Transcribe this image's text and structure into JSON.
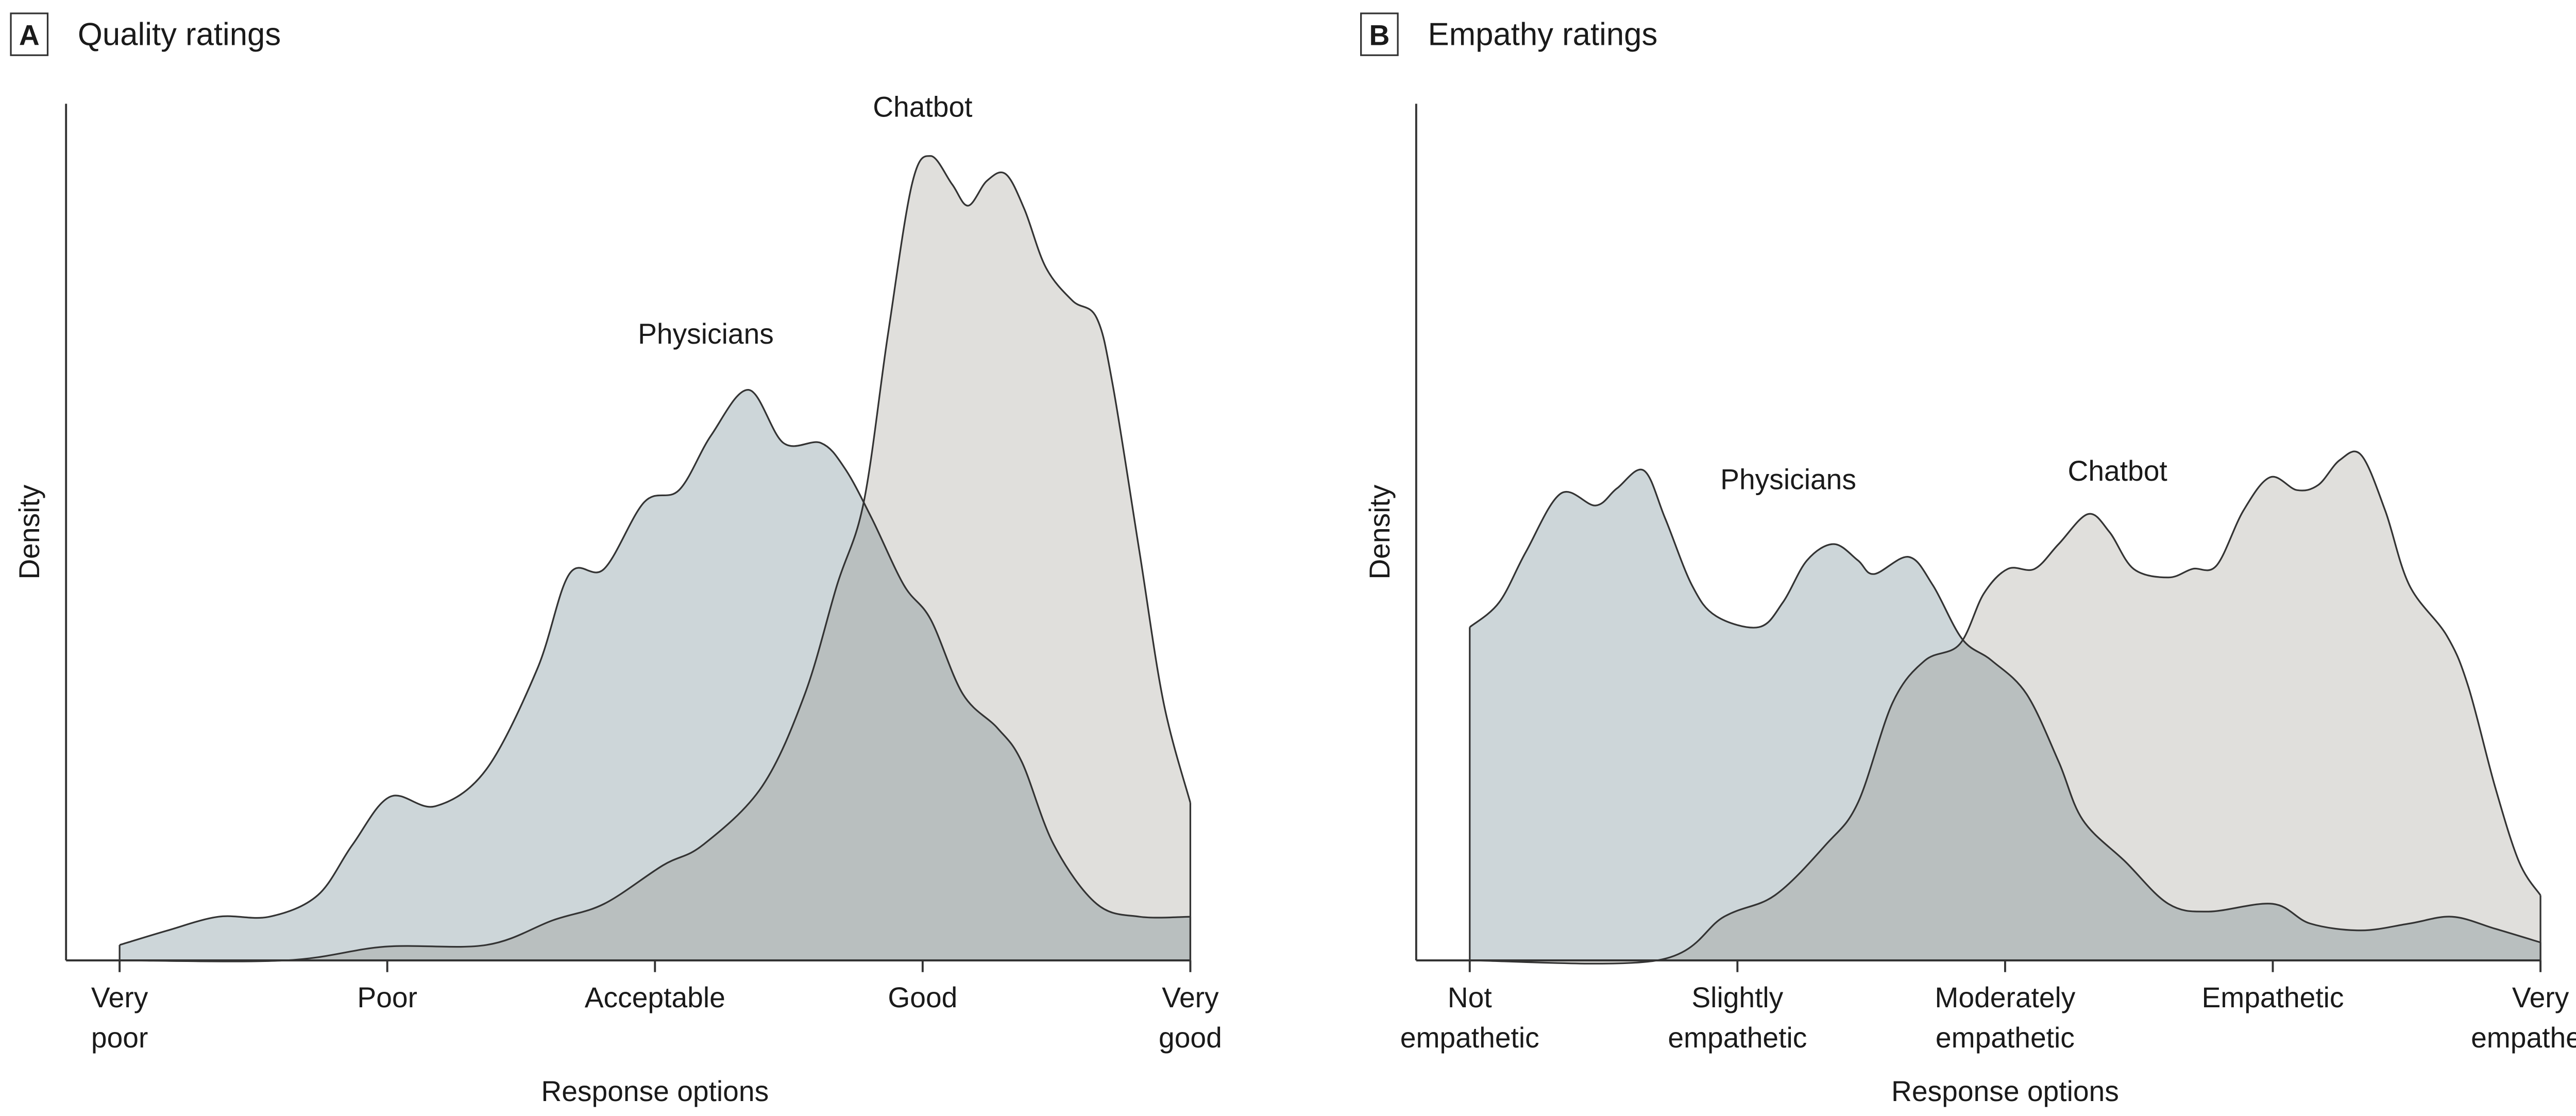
{
  "colors": {
    "physicians": "#cdd6d9",
    "chatbot": "#e0dfdc",
    "overlap": "#b9bfbf",
    "line": "#333333"
  },
  "chart_data": [
    {
      "type": "area",
      "panel": "A",
      "title": "Quality ratings",
      "xlabel": "Response options",
      "ylabel": "Density",
      "xlim": [
        1,
        5
      ],
      "ylim": [
        0,
        1
      ],
      "grid": false,
      "x_ticks": [
        {
          "value": 1,
          "lines": [
            "Very",
            "poor"
          ]
        },
        {
          "value": 2,
          "lines": [
            "Poor"
          ]
        },
        {
          "value": 3,
          "lines": [
            "Acceptable"
          ]
        },
        {
          "value": 4,
          "lines": [
            "Good"
          ]
        },
        {
          "value": 5,
          "lines": [
            "Very",
            "good"
          ]
        }
      ],
      "series": [
        {
          "name": "Physicians",
          "label_at": [
            3.19,
            0.72
          ],
          "points": [
            [
              1.0,
              0.018
            ],
            [
              1.18,
              0.035
            ],
            [
              1.37,
              0.051
            ],
            [
              1.56,
              0.051
            ],
            [
              1.74,
              0.076
            ],
            [
              1.87,
              0.135
            ],
            [
              2.01,
              0.191
            ],
            [
              2.18,
              0.18
            ],
            [
              2.37,
              0.223
            ],
            [
              2.56,
              0.34
            ],
            [
              2.68,
              0.451
            ],
            [
              2.81,
              0.457
            ],
            [
              2.96,
              0.535
            ],
            [
              3.09,
              0.549
            ],
            [
              3.21,
              0.613
            ],
            [
              3.35,
              0.666
            ],
            [
              3.48,
              0.604
            ],
            [
              3.62,
              0.604
            ],
            [
              3.71,
              0.574
            ],
            [
              3.81,
              0.516
            ],
            [
              3.93,
              0.438
            ],
            [
              4.03,
              0.398
            ],
            [
              4.15,
              0.311
            ],
            [
              4.28,
              0.271
            ],
            [
              4.37,
              0.232
            ],
            [
              4.49,
              0.135
            ],
            [
              4.65,
              0.066
            ],
            [
              4.81,
              0.051
            ],
            [
              5.0,
              0.051
            ]
          ]
        },
        {
          "name": "Chatbot",
          "label_at": [
            4.0,
            0.985
          ],
          "points": [
            [
              1.0,
              0.0
            ],
            [
              1.62,
              0.0
            ],
            [
              1.99,
              0.016
            ],
            [
              2.37,
              0.018
            ],
            [
              2.62,
              0.047
            ],
            [
              2.81,
              0.066
            ],
            [
              3.03,
              0.111
            ],
            [
              3.18,
              0.135
            ],
            [
              3.4,
              0.203
            ],
            [
              3.56,
              0.311
            ],
            [
              3.68,
              0.438
            ],
            [
              3.78,
              0.535
            ],
            [
              3.87,
              0.73
            ],
            [
              3.96,
              0.906
            ],
            [
              4.03,
              0.939
            ],
            [
              4.11,
              0.906
            ],
            [
              4.17,
              0.881
            ],
            [
              4.24,
              0.91
            ],
            [
              4.31,
              0.918
            ],
            [
              4.38,
              0.877
            ],
            [
              4.46,
              0.809
            ],
            [
              4.56,
              0.77
            ],
            [
              4.65,
              0.75
            ],
            [
              4.71,
              0.672
            ],
            [
              4.81,
              0.477
            ],
            [
              4.9,
              0.301
            ],
            [
              5.0,
              0.184
            ]
          ]
        }
      ]
    },
    {
      "type": "area",
      "panel": "B",
      "title": "Empathy ratings",
      "xlabel": "Response options",
      "ylabel": "Density",
      "xlim": [
        1,
        5
      ],
      "ylim": [
        0,
        1
      ],
      "grid": false,
      "x_ticks": [
        {
          "value": 1,
          "lines": [
            "Not",
            "empathetic"
          ]
        },
        {
          "value": 2,
          "lines": [
            "Slightly",
            "empathetic"
          ]
        },
        {
          "value": 3,
          "lines": [
            "Moderately",
            "empathetic"
          ]
        },
        {
          "value": 4,
          "lines": [
            "Empathetic"
          ]
        },
        {
          "value": 5,
          "lines": [
            "Very",
            "empathetic"
          ]
        }
      ],
      "series": [
        {
          "name": "Physicians",
          "label_at": [
            2.19,
            0.55
          ],
          "points": [
            [
              1.0,
              0.389
            ],
            [
              1.11,
              0.418
            ],
            [
              1.21,
              0.477
            ],
            [
              1.34,
              0.545
            ],
            [
              1.47,
              0.531
            ],
            [
              1.55,
              0.551
            ],
            [
              1.65,
              0.572
            ],
            [
              1.73,
              0.516
            ],
            [
              1.83,
              0.438
            ],
            [
              1.92,
              0.402
            ],
            [
              2.08,
              0.389
            ],
            [
              2.17,
              0.418
            ],
            [
              2.26,
              0.467
            ],
            [
              2.36,
              0.486
            ],
            [
              2.45,
              0.467
            ],
            [
              2.51,
              0.451
            ],
            [
              2.64,
              0.471
            ],
            [
              2.73,
              0.438
            ],
            [
              2.84,
              0.375
            ],
            [
              2.95,
              0.35
            ],
            [
              3.08,
              0.311
            ],
            [
              3.2,
              0.232
            ],
            [
              3.29,
              0.164
            ],
            [
              3.45,
              0.115
            ],
            [
              3.61,
              0.066
            ],
            [
              3.76,
              0.057
            ],
            [
              4.0,
              0.066
            ],
            [
              4.14,
              0.043
            ],
            [
              4.33,
              0.035
            ],
            [
              4.51,
              0.043
            ],
            [
              4.67,
              0.051
            ],
            [
              4.83,
              0.037
            ],
            [
              5.0,
              0.021
            ]
          ]
        },
        {
          "name": "Chatbot",
          "label_at": [
            3.42,
            0.56
          ],
          "points": [
            [
              1.0,
              0.0
            ],
            [
              1.7,
              0.0
            ],
            [
              1.95,
              0.051
            ],
            [
              2.14,
              0.076
            ],
            [
              2.33,
              0.135
            ],
            [
              2.45,
              0.184
            ],
            [
              2.58,
              0.301
            ],
            [
              2.7,
              0.35
            ],
            [
              2.83,
              0.369
            ],
            [
              2.92,
              0.428
            ],
            [
              3.01,
              0.457
            ],
            [
              3.11,
              0.457
            ],
            [
              3.2,
              0.486
            ],
            [
              3.31,
              0.521
            ],
            [
              3.39,
              0.5
            ],
            [
              3.48,
              0.457
            ],
            [
              3.61,
              0.447
            ],
            [
              3.7,
              0.457
            ],
            [
              3.79,
              0.461
            ],
            [
              3.89,
              0.525
            ],
            [
              3.99,
              0.564
            ],
            [
              4.09,
              0.549
            ],
            [
              4.17,
              0.555
            ],
            [
              4.25,
              0.584
            ],
            [
              4.33,
              0.59
            ],
            [
              4.42,
              0.525
            ],
            [
              4.51,
              0.438
            ],
            [
              4.65,
              0.379
            ],
            [
              4.73,
              0.32
            ],
            [
              4.83,
              0.203
            ],
            [
              4.92,
              0.115
            ],
            [
              5.0,
              0.076
            ]
          ]
        }
      ]
    }
  ]
}
